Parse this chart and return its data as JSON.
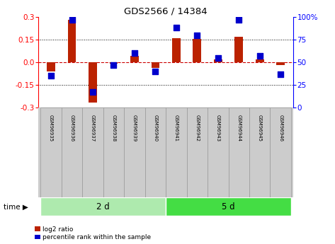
{
  "title": "GDS2566 / 14384",
  "samples": [
    "GSM96935",
    "GSM96936",
    "GSM96937",
    "GSM96938",
    "GSM96939",
    "GSM96940",
    "GSM96941",
    "GSM96942",
    "GSM96943",
    "GSM96944",
    "GSM96945",
    "GSM96946"
  ],
  "log2_ratio": [
    -0.06,
    0.28,
    -0.27,
    -0.01,
    0.04,
    -0.04,
    0.16,
    0.155,
    0.02,
    0.17,
    0.02,
    -0.02
  ],
  "percentile_rank": [
    35,
    97,
    17,
    47,
    60,
    40,
    88,
    80,
    55,
    97,
    57,
    37
  ],
  "groups": [
    {
      "label": "2 d",
      "start": 0,
      "end": 6,
      "color": "#aeeaae"
    },
    {
      "label": "5 d",
      "start": 6,
      "end": 12,
      "color": "#44dd44"
    }
  ],
  "bar_color": "#bb2200",
  "dot_color": "#0000cc",
  "ylim": [
    -0.3,
    0.3
  ],
  "yticks_left": [
    -0.3,
    -0.15,
    0.0,
    0.15,
    0.3
  ],
  "yticks_right": [
    0,
    25,
    50,
    75,
    100
  ],
  "dotted_lines": [
    -0.15,
    0.15
  ],
  "zero_line_color": "#cc0000",
  "bg_color": "#ffffff",
  "sample_box_color": "#cccccc",
  "sample_box_edge": "#999999",
  "time_label": "time ▶",
  "legend_red": "log2 ratio",
  "legend_blue": "percentile rank within the sample",
  "bar_width": 0.4,
  "dot_size": 28
}
